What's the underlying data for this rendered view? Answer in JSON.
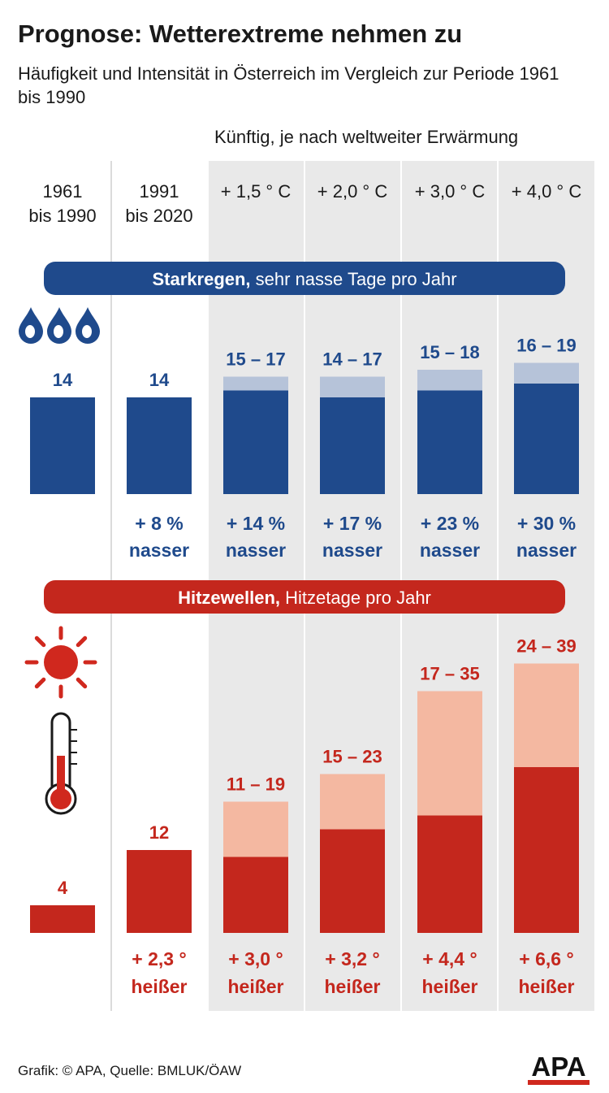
{
  "title": "Prognose: Wetterextreme nehmen zu",
  "subtitle": "Häufigkeit und Intensität in Österreich im Vergleich zur Periode 1961 bis 1990",
  "future_label": "Künftig, je nach weltweiter Erwärmung",
  "columns": [
    {
      "line1": "1961",
      "line2": "bis 1990"
    },
    {
      "line1": "1991",
      "line2": "bis 2020"
    },
    {
      "line1": "+ 1,5 ° C",
      "line2": ""
    },
    {
      "line1": "+ 2,0 ° C",
      "line2": ""
    },
    {
      "line1": "+ 3,0 ° C",
      "line2": ""
    },
    {
      "line1": "+ 4,0 ° C",
      "line2": ""
    }
  ],
  "colors": {
    "rain_dark": "#1f4a8c",
    "rain_light": "#b6c3d9",
    "heat_dark": "#c4271d",
    "heat_light": "#f4b8a1",
    "column_shade": "#e9e9e9",
    "sun": "#d0281e"
  },
  "icons": [
    "raindrops-icon",
    "sun-icon",
    "thermometer-icon"
  ],
  "chart_data": [
    {
      "type": "bar",
      "title_bold": "Starkregen,",
      "title_rest": " sehr nasse Tage pro Jahr",
      "categories": [
        "1961 bis 1990",
        "1991 bis 2020",
        "+ 1,5 ° C",
        "+ 2,0 ° C",
        "+ 3,0 ° C",
        "+ 4,0 ° C"
      ],
      "low": [
        14,
        14,
        15,
        14,
        15,
        16
      ],
      "high": [
        14,
        14,
        17,
        17,
        18,
        19
      ],
      "value_labels": [
        "14",
        "14",
        "15 – 17",
        "14 – 17",
        "15 – 18",
        "16 – 19"
      ],
      "change_value": [
        "",
        "+ 8 %",
        "+ 14 %",
        "+ 17 %",
        "+ 23 %",
        "+ 30 %"
      ],
      "change_word": [
        "",
        "nasser",
        "nasser",
        "nasser",
        "nasser",
        "nasser"
      ]
    },
    {
      "type": "bar",
      "title_bold": "Hitzewellen,",
      "title_rest": " Hitzetage pro Jahr",
      "categories": [
        "1961 bis 1990",
        "1991 bis 2020",
        "+ 1,5 ° C",
        "+ 2,0 ° C",
        "+ 3,0 ° C",
        "+ 4,0 ° C"
      ],
      "low": [
        4,
        12,
        11,
        15,
        17,
        24
      ],
      "high": [
        4,
        12,
        19,
        23,
        35,
        39
      ],
      "value_labels": [
        "4",
        "12",
        "11 – 19",
        "15 – 23",
        "17 – 35",
        "24 – 39"
      ],
      "change_value": [
        "",
        "+ 2,3 °",
        "+ 3,0 °",
        "+ 3,2 °",
        "+ 4,4 °",
        "+ 6,6 °"
      ],
      "change_word": [
        "",
        "heißer",
        "heißer",
        "heißer",
        "heißer",
        "heißer"
      ]
    }
  ],
  "footer": "Grafik: © APA, Quelle: BMLUK/ÖAW",
  "logo_text": "APA"
}
